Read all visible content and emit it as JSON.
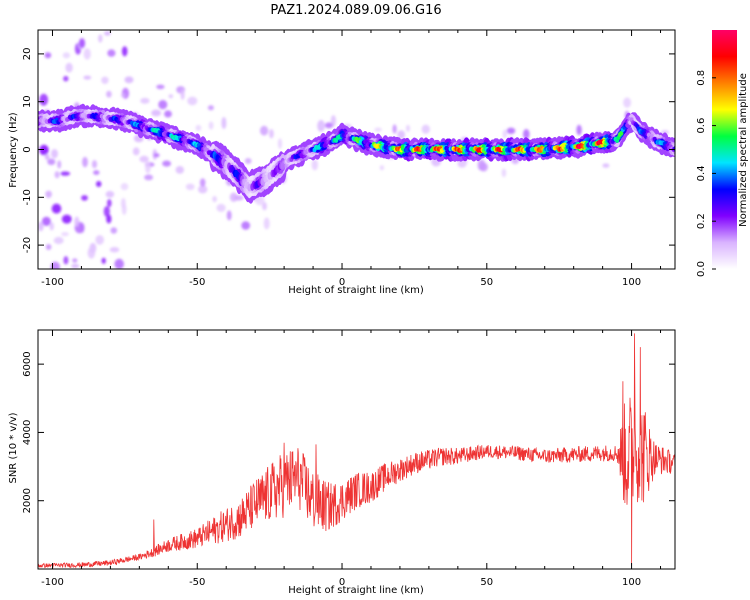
{
  "figure_title": "PAZ1.2024.089.09.06.G16",
  "chart_data": [
    {
      "type": "heatmap",
      "panel": "spectrogram",
      "xlabel": "Height of straight line (km)",
      "ylabel": "Frequency (Hz)",
      "xlim": [
        -105,
        115
      ],
      "ylim": [
        -25,
        25
      ],
      "xticks": [
        -100,
        -50,
        0,
        50,
        100
      ],
      "yticks": [
        -20,
        -10,
        0,
        10,
        20
      ],
      "colorbar": {
        "label": "Normalized spectral amplitude",
        "range": [
          0,
          1
        ],
        "ticks": [
          0.0,
          0.2,
          0.4,
          0.6,
          0.8
        ],
        "colormap": [
          "#ffffff",
          "#d9b3ff",
          "#8000ff",
          "#0000ff",
          "#00e5ff",
          "#00ff40",
          "#ffff00",
          "#ff8000",
          "#ff0000",
          "#ff0066"
        ]
      },
      "ridge": {
        "x": [
          -103,
          -98,
          -92,
          -86,
          -80,
          -75,
          -70,
          -65,
          -60,
          -55,
          -50,
          -45,
          -40,
          -35,
          -32,
          -29,
          -26,
          -22,
          -18,
          -14,
          -10,
          -6,
          -2,
          0,
          5,
          10,
          20,
          30,
          40,
          50,
          60,
          70,
          80,
          90,
          95,
          98,
          100,
          103,
          108,
          115
        ],
        "y": [
          6,
          6,
          7,
          7,
          6.5,
          6,
          5,
          4,
          3,
          2,
          1,
          -1,
          -3,
          -6,
          -8,
          -7,
          -6,
          -4,
          -2,
          -1,
          0,
          1,
          2,
          3,
          2,
          1,
          0,
          0,
          0,
          0,
          0,
          0,
          0.5,
          1.5,
          2,
          5,
          6,
          4,
          2,
          0
        ],
        "amplitude": [
          0.25,
          0.35,
          0.3,
          0.3,
          0.3,
          0.35,
          0.4,
          0.45,
          0.5,
          0.45,
          0.4,
          0.35,
          0.3,
          0.3,
          0.2,
          0.25,
          0.2,
          0.2,
          0.3,
          0.3,
          0.4,
          0.5,
          0.5,
          0.5,
          0.5,
          0.6,
          0.75,
          0.8,
          0.8,
          0.8,
          0.8,
          0.75,
          0.85,
          0.85,
          0.6,
          0.4,
          0.3,
          0.35,
          0.4,
          0.4
        ]
      }
    },
    {
      "type": "line",
      "panel": "snr",
      "xlabel": "Height of straight line (km)",
      "ylabel": "SNR (10 * v/v)",
      "xlim": [
        -105,
        115
      ],
      "ylim": [
        0,
        7000
      ],
      "xticks": [
        -100,
        -50,
        0,
        50,
        100
      ],
      "yticks": [
        2000,
        4000,
        6000
      ],
      "color": "#ee3333",
      "envelope": {
        "x": [
          -105,
          -90,
          -80,
          -70,
          -65,
          -60,
          -55,
          -50,
          -45,
          -40,
          -35,
          -30,
          -25,
          -20,
          -15,
          -10,
          -5,
          0,
          5,
          10,
          15,
          20,
          25,
          30,
          35,
          40,
          50,
          60,
          70,
          80,
          90,
          95,
          98,
          100,
          102,
          104,
          106,
          110,
          115
        ],
        "y": [
          100,
          120,
          180,
          350,
          500,
          700,
          800,
          900,
          1100,
          1300,
          1500,
          1900,
          2200,
          2500,
          2700,
          2000,
          1800,
          2000,
          2300,
          2400,
          2700,
          2900,
          3100,
          3200,
          3300,
          3300,
          3450,
          3400,
          3300,
          3350,
          3400,
          3400,
          3300,
          3500,
          3600,
          3400,
          3300,
          3200,
          3100
        ]
      },
      "noise": {
        "x": [
          -105,
          -70,
          -50,
          -35,
          -20,
          -10,
          0,
          20,
          50,
          95,
          98,
          104,
          108,
          115
        ],
        "amplitude": [
          60,
          90,
          300,
          600,
          1000,
          900,
          600,
          350,
          200,
          250,
          1800,
          1600,
          500,
          300
        ]
      },
      "peaks": [
        {
          "x": -65,
          "y": 1450
        },
        {
          "x": -20,
          "y": 3700
        },
        {
          "x": -9,
          "y": 3650
        },
        {
          "x": 97,
          "y": 5500
        },
        {
          "x": 101,
          "y": 6900
        },
        {
          "x": 103,
          "y": 6500
        },
        {
          "x": 100,
          "y": 100
        }
      ]
    }
  ]
}
